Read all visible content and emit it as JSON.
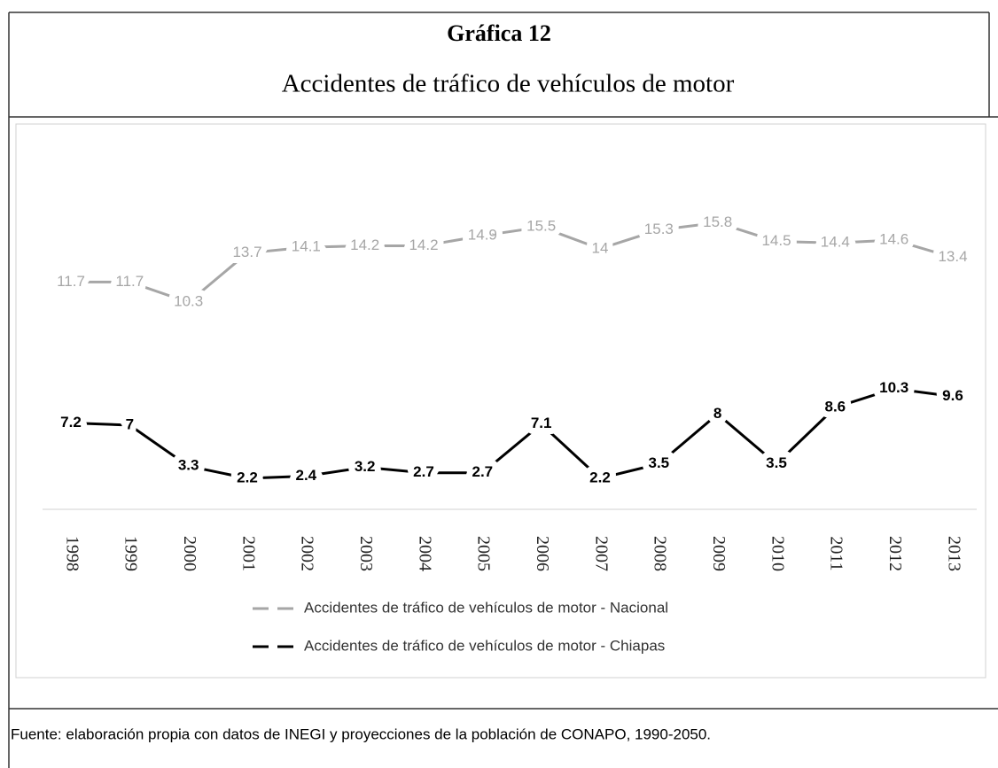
{
  "chart_data": {
    "type": "line",
    "title": "Gráfica 12",
    "subtitle": "Accidentes de tráfico de vehículos de motor",
    "source": "Fuente: elaboración propia con datos de  INEGI y proyecciones de la población de CONAPO, 1990-2050.",
    "categories": [
      "1998",
      "1999",
      "2000",
      "2001",
      "2002",
      "2003",
      "2004",
      "2005",
      "2006",
      "2007",
      "2008",
      "2009",
      "2010",
      "2011",
      "2012",
      "2013"
    ],
    "series": [
      {
        "name": "Accidentes de tráfico de vehículos de motor - Nacional",
        "color": "#a6a6a6",
        "values": [
          11.7,
          11.7,
          10.3,
          13.7,
          14.1,
          14.2,
          14.2,
          14.9,
          15.5,
          14.0,
          15.3,
          15.8,
          14.5,
          14.4,
          14.6,
          13.4
        ]
      },
      {
        "name": "Accidentes de tráfico de vehículos de motor - Chiapas",
        "color": "#000000",
        "axis": "y2",
        "values": [
          7.2,
          7.0,
          3.3,
          2.2,
          2.4,
          3.2,
          2.7,
          2.7,
          7.1,
          2.2,
          3.5,
          8.0,
          3.5,
          8.6,
          10.3,
          9.6
        ]
      }
    ],
    "ylim": [
      -4,
      22
    ],
    "y2lim": [
      -0.6,
      33.4
    ],
    "legend": "bottom"
  }
}
